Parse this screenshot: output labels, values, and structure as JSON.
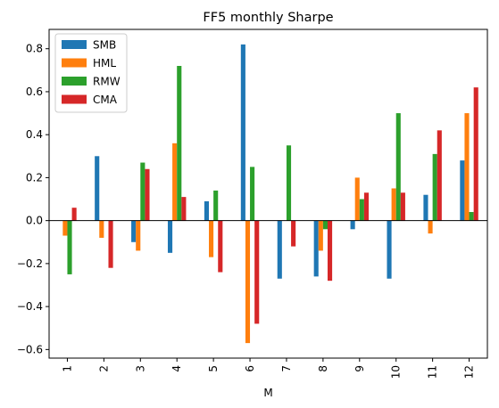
{
  "chart_data": {
    "type": "bar",
    "title": "FF5 monthly Sharpe",
    "xlabel": "M",
    "ylabel": "",
    "ylim": [
      -0.64,
      0.89
    ],
    "yticks": [
      -0.6,
      -0.4,
      -0.2,
      0.0,
      0.2,
      0.4,
      0.6,
      0.8
    ],
    "ytick_labels": [
      "−0.6",
      "−0.4",
      "−0.2",
      "0.0",
      "0.2",
      "0.4",
      "0.6",
      "0.8"
    ],
    "categories": [
      "1",
      "2",
      "3",
      "4",
      "5",
      "6",
      "7",
      "8",
      "9",
      "10",
      "11",
      "12"
    ],
    "legend_position": "top-left",
    "grid": false,
    "series": [
      {
        "name": "SMB",
        "color": "#1f77b4",
        "values": [
          0.0,
          0.3,
          -0.1,
          -0.15,
          0.09,
          0.82,
          -0.27,
          -0.26,
          -0.04,
          -0.27,
          0.12,
          0.28
        ]
      },
      {
        "name": "HML",
        "color": "#ff7f0e",
        "values": [
          -0.07,
          -0.08,
          -0.14,
          0.36,
          -0.17,
          -0.57,
          0.0,
          -0.14,
          0.2,
          0.15,
          -0.06,
          0.5
        ]
      },
      {
        "name": "RMW",
        "color": "#2ca02c",
        "values": [
          -0.25,
          0.0,
          0.27,
          0.72,
          0.14,
          0.25,
          0.35,
          -0.04,
          0.1,
          0.5,
          0.31,
          0.04
        ]
      },
      {
        "name": "CMA",
        "color": "#d62728",
        "values": [
          0.06,
          -0.22,
          0.24,
          0.11,
          -0.24,
          -0.48,
          -0.12,
          -0.28,
          0.13,
          0.13,
          0.42,
          0.62
        ]
      }
    ]
  }
}
